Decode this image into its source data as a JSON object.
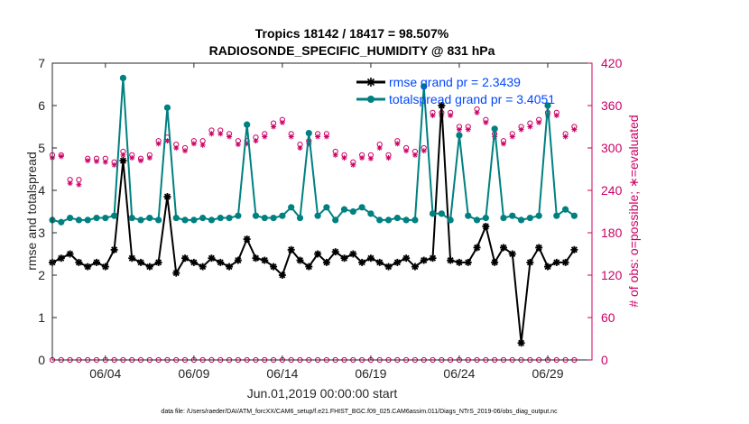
{
  "chart_data": {
    "type": "line",
    "title": "Tropics 18142 / 18417 = 98.507%",
    "subtitle": "RADIOSONDE_SPECIFIC_HUMIDITY @ 831 hPa",
    "xlabel": "Jun.01,2019 00:00:00 start",
    "ylabel_left": "rmse and totalspread",
    "ylabel_right": "# of obs: o=possible; ∗=evaluated",
    "xlim": [
      1,
      31.5
    ],
    "ylim_left": [
      0,
      7
    ],
    "ylim_right": [
      0,
      420
    ],
    "x_ticks": [
      4,
      9,
      14,
      19,
      24,
      29
    ],
    "x_tick_labels": [
      "06/04",
      "06/09",
      "06/14",
      "06/19",
      "06/24",
      "06/29"
    ],
    "y_ticks_left": [
      0,
      1,
      2,
      3,
      4,
      5,
      6,
      7
    ],
    "y_tick_labels_left": [
      "0",
      "1",
      "2",
      "3",
      "4",
      "5",
      "6",
      "7"
    ],
    "y_ticks_right": [
      0,
      60,
      120,
      180,
      240,
      300,
      360,
      420
    ],
    "y_tick_labels_right": [
      "0",
      "60",
      "120",
      "180",
      "240",
      "300",
      "360",
      "420"
    ],
    "x": [
      1.0,
      1.5,
      2.0,
      2.5,
      3.0,
      3.5,
      4.0,
      4.5,
      5.0,
      5.5,
      6.0,
      6.5,
      7.0,
      7.5,
      8.0,
      8.5,
      9.0,
      9.5,
      10.0,
      10.5,
      11.0,
      11.5,
      12.0,
      12.5,
      13.0,
      13.5,
      14.0,
      14.5,
      15.0,
      15.5,
      16.0,
      16.5,
      17.0,
      17.5,
      18.0,
      18.5,
      19.0,
      19.5,
      20.0,
      20.5,
      21.0,
      21.5,
      22.0,
      22.5,
      23.0,
      23.5,
      24.0,
      24.5,
      25.0,
      25.5,
      26.0,
      26.5,
      27.0,
      27.5,
      28.0,
      28.5,
      29.0,
      29.5,
      30.0,
      30.5
    ],
    "series": [
      {
        "name": "rmse",
        "legend": "rmse grand pr = 2.3439",
        "axis": "left",
        "color": "#000000",
        "marker": "asterisk",
        "values": [
          2.3,
          2.4,
          2.5,
          2.3,
          2.2,
          2.3,
          2.2,
          2.6,
          4.7,
          2.4,
          2.3,
          2.2,
          2.3,
          3.85,
          2.05,
          2.4,
          2.3,
          2.2,
          2.4,
          2.3,
          2.2,
          2.35,
          2.85,
          2.4,
          2.35,
          2.2,
          2.0,
          2.6,
          2.35,
          2.2,
          2.5,
          2.3,
          2.55,
          2.4,
          2.5,
          2.3,
          2.4,
          2.3,
          2.2,
          2.3,
          2.4,
          2.2,
          2.35,
          2.4,
          6.0,
          2.35,
          2.3,
          2.3,
          2.65,
          3.15,
          2.3,
          2.65,
          2.5,
          0.4,
          2.3,
          2.65,
          2.2,
          2.3,
          2.3,
          2.6
        ]
      },
      {
        "name": "totalspread",
        "legend": "totalspread grand pr = 3.4051",
        "axis": "left",
        "color": "#008080",
        "marker": "dot",
        "values": [
          3.3,
          3.25,
          3.35,
          3.3,
          3.3,
          3.35,
          3.35,
          3.4,
          6.65,
          3.35,
          3.3,
          3.35,
          3.3,
          5.95,
          3.35,
          3.3,
          3.3,
          3.35,
          3.3,
          3.35,
          3.35,
          3.4,
          5.55,
          3.4,
          3.35,
          3.35,
          3.4,
          3.6,
          3.35,
          5.35,
          3.4,
          3.6,
          3.3,
          3.55,
          3.5,
          3.6,
          3.45,
          3.3,
          3.3,
          3.35,
          3.3,
          3.3,
          6.45,
          3.45,
          3.45,
          3.3,
          5.3,
          3.4,
          3.3,
          3.35,
          5.45,
          3.35,
          3.4,
          3.3,
          3.35,
          3.4,
          6.0,
          3.4,
          3.55,
          3.4
        ]
      },
      {
        "name": "obs_possible",
        "axis": "right",
        "color": "#cc0066",
        "marker": "circle",
        "values": [
          290,
          290,
          255,
          255,
          285,
          285,
          285,
          280,
          295,
          290,
          285,
          290,
          310,
          315,
          305,
          300,
          310,
          310,
          325,
          325,
          320,
          310,
          310,
          315,
          320,
          335,
          340,
          320,
          305,
          310,
          320,
          320,
          295,
          290,
          280,
          290,
          290,
          305,
          290,
          310,
          300,
          295,
          300,
          350,
          350,
          350,
          330,
          330,
          355,
          340,
          320,
          310,
          320,
          330,
          335,
          340,
          350,
          350,
          320,
          330
        ]
      },
      {
        "name": "obs_evaluated",
        "axis": "right",
        "color": "#cc0066",
        "marker": "asterisk",
        "values": [
          286,
          288,
          250,
          248,
          282,
          281,
          280,
          276,
          290,
          286,
          282,
          286,
          306,
          310,
          300,
          296,
          306,
          304,
          320,
          320,
          316,
          305,
          306,
          310,
          316,
          330,
          336,
          316,
          300,
          306,
          316,
          316,
          290,
          286,
          276,
          286,
          285,
          300,
          286,
          306,
          296,
          290,
          296,
          346,
          346,
          346,
          326,
          326,
          350,
          336,
          316,
          306,
          316,
          326,
          330,
          336,
          346,
          346,
          316,
          326
        ]
      },
      {
        "name": "obs_zero_possible",
        "axis": "right",
        "color": "#cc0066",
        "marker": "circle",
        "values": [
          0,
          0,
          0,
          0,
          0,
          0,
          0,
          0,
          0,
          0,
          0,
          0,
          0,
          0,
          0,
          0,
          0,
          0,
          0,
          0,
          0,
          0,
          0,
          0,
          0,
          0,
          0,
          0,
          0,
          0,
          0,
          0,
          0,
          0,
          0,
          0,
          0,
          0,
          0,
          0,
          0,
          0,
          0,
          0,
          0,
          0,
          0,
          0,
          0,
          0,
          0,
          0,
          0,
          0,
          0,
          0,
          0,
          0,
          0,
          0
        ]
      }
    ],
    "footer": "data file: /Users/raeder/DAI/ATM_forcXX/CAM6_setup/f.e21.FHIST_BGC.f09_025.CAM6assim.011/Diags_NTrS_2019-06/obs_diag_output.nc"
  }
}
